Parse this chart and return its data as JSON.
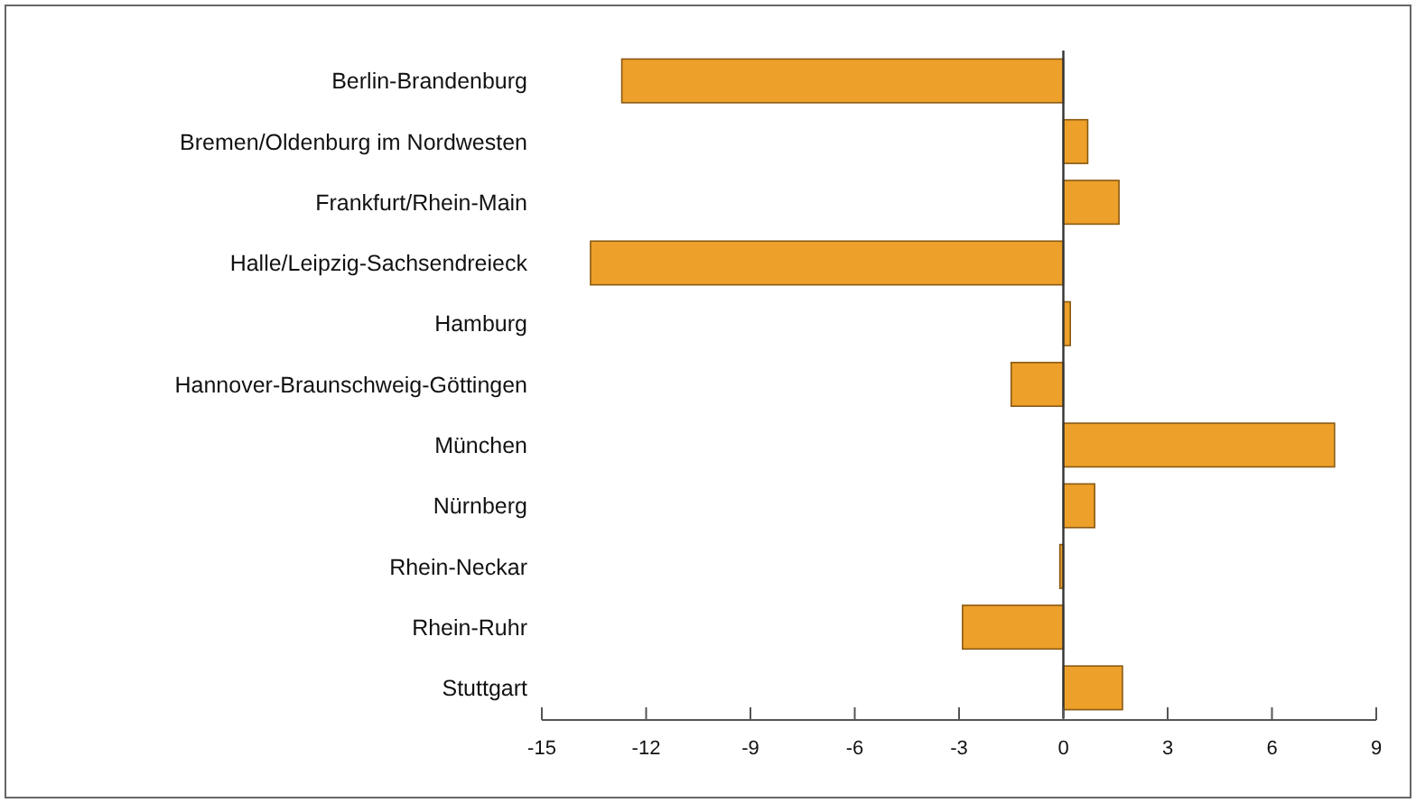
{
  "chart_data": {
    "type": "bar",
    "orientation": "horizontal",
    "categories": [
      "Berlin-Brandenburg",
      "Bremen/Oldenburg im Nordwesten",
      "Frankfurt/Rhein-Main",
      "Halle/Leipzig-Sachsendreieck",
      "Hamburg",
      "Hannover-Braunschweig-Göttingen",
      "München",
      "Nürnberg",
      "Rhein-Neckar",
      "Rhein-Ruhr",
      "Stuttgart"
    ],
    "values": [
      -12.7,
      0.7,
      1.6,
      -13.6,
      0.2,
      -1.5,
      7.8,
      0.9,
      -0.1,
      -2.9,
      1.7
    ],
    "color": "#eda02a",
    "xlim": [
      -15,
      9
    ],
    "xticks": [
      -15,
      -12,
      -9,
      -6,
      -3,
      0,
      3,
      6,
      9
    ]
  }
}
